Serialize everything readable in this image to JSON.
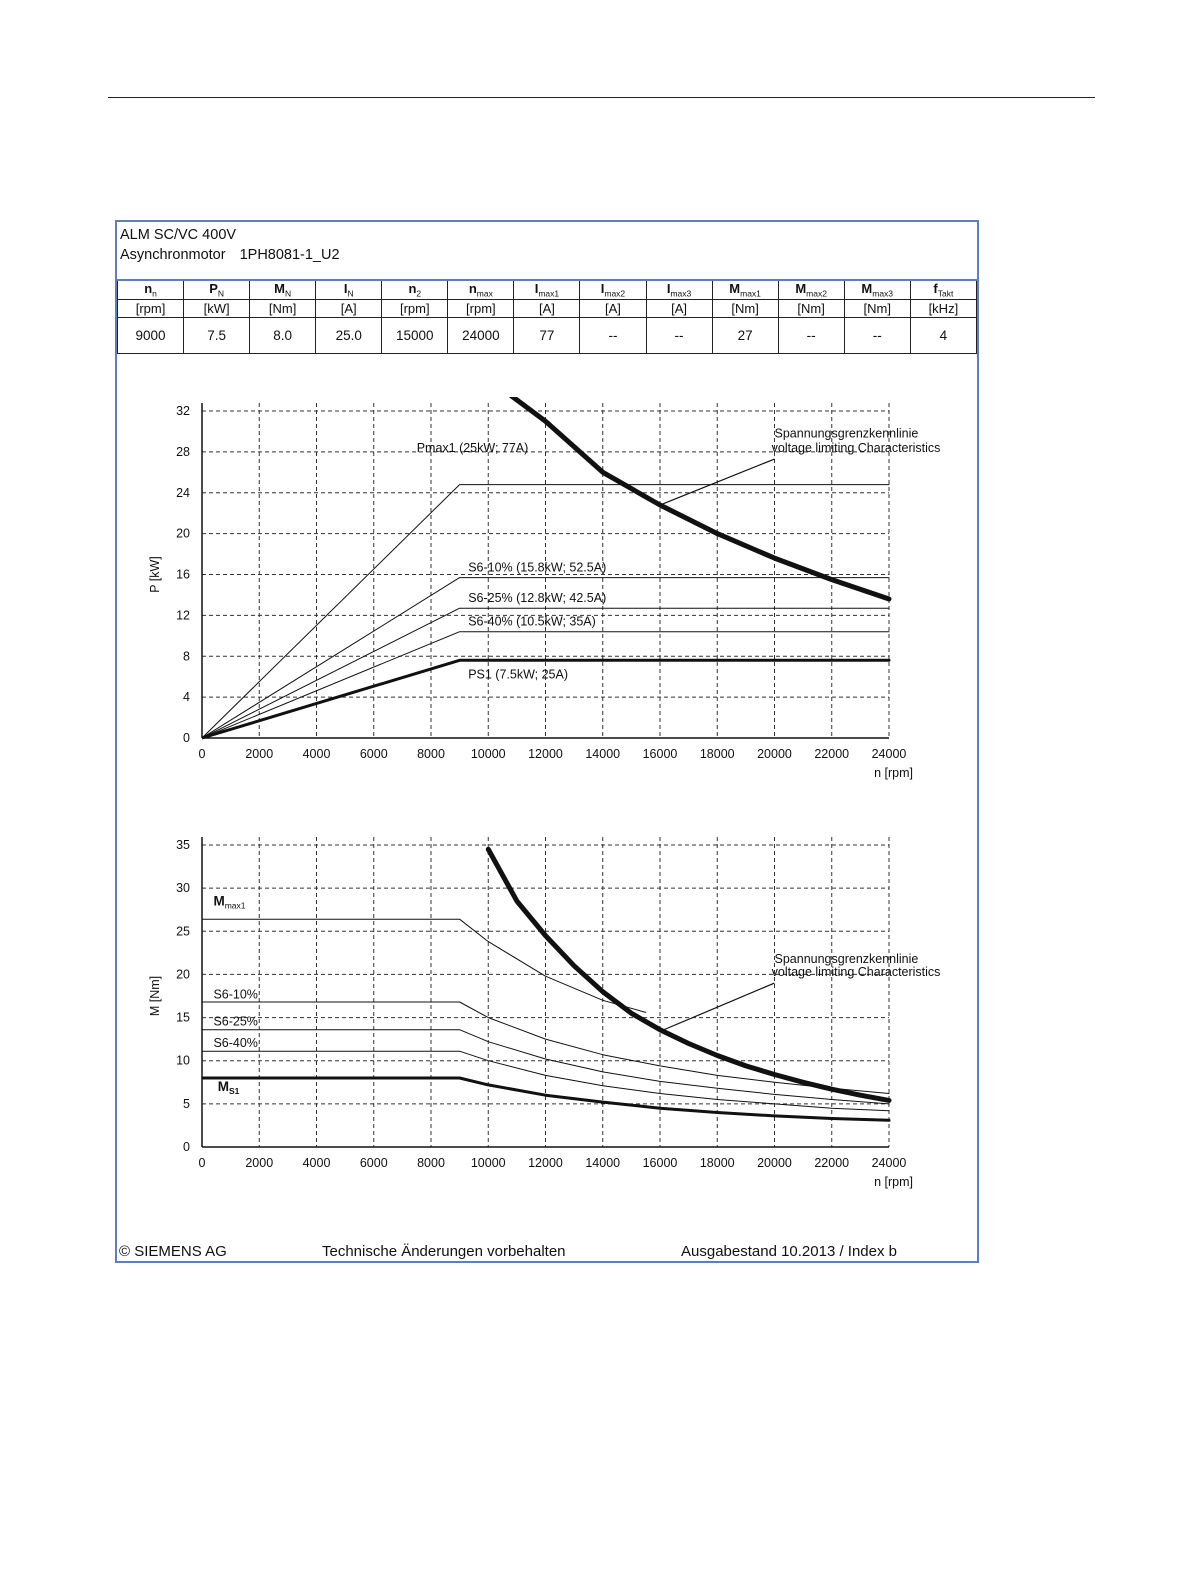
{
  "header": {
    "line1": "ALM SC/VC 400V",
    "line2_label": "Asynchronmotor",
    "line2_model": "1PH8081-1_U2"
  },
  "table": {
    "columns": [
      {
        "sym": "n",
        "sub": "n",
        "unit": "[rpm]",
        "value": "9000"
      },
      {
        "sym": "P",
        "sub": "N",
        "unit": "[kW]",
        "value": "7.5"
      },
      {
        "sym": "M",
        "sub": "N",
        "unit": "[Nm]",
        "value": "8.0"
      },
      {
        "sym": "I",
        "sub": "N",
        "unit": "[A]",
        "value": "25.0"
      },
      {
        "sym": "n",
        "sub": "2",
        "unit": "[rpm]",
        "value": "15000"
      },
      {
        "sym": "n",
        "sub": "max",
        "unit": "[rpm]",
        "value": "24000"
      },
      {
        "sym": "I",
        "sub": "max1",
        "unit": "[A]",
        "value": "77"
      },
      {
        "sym": "I",
        "sub": "max2",
        "unit": "[A]",
        "value": "--"
      },
      {
        "sym": "I",
        "sub": "max3",
        "unit": "[A]",
        "value": "--"
      },
      {
        "sym": "M",
        "sub": "max1",
        "unit": "[Nm]",
        "value": "27"
      },
      {
        "sym": "M",
        "sub": "max2",
        "unit": "[Nm]",
        "value": "--"
      },
      {
        "sym": "M",
        "sub": "max3",
        "unit": "[Nm]",
        "value": "--"
      },
      {
        "sym": "f",
        "sub": "Takt",
        "unit": "[kHz]",
        "value": "4"
      }
    ]
  },
  "chart_data": [
    {
      "type": "line",
      "title": "",
      "xlabel": "n [rpm]",
      "ylabel": "P [kW]",
      "xlim": [
        0,
        24000
      ],
      "ylim": [
        0,
        32
      ],
      "xticks": [
        0,
        2000,
        4000,
        6000,
        8000,
        10000,
        12000,
        14000,
        16000,
        18000,
        20000,
        22000,
        24000
      ],
      "yticks": [
        0,
        4,
        8,
        12,
        16,
        20,
        24,
        28,
        32
      ],
      "grid": true,
      "series": [
        {
          "name": "Pmax1 (25kW; 77A)",
          "weight": "thin",
          "x": [
            0,
            9000,
            24000
          ],
          "y": [
            0,
            24.8,
            24.8
          ]
        },
        {
          "name": "S6-10% (15.8kW; 52.5A)",
          "weight": "thin",
          "x": [
            0,
            9000,
            24000
          ],
          "y": [
            0,
            15.7,
            15.7
          ]
        },
        {
          "name": "S6-25% (12.8kW; 42.5A)",
          "weight": "thin",
          "x": [
            0,
            9000,
            24000
          ],
          "y": [
            0,
            12.7,
            12.7
          ]
        },
        {
          "name": "S6-40% (10.5kW; 35A)",
          "weight": "thin",
          "x": [
            0,
            9000,
            24000
          ],
          "y": [
            0,
            10.4,
            10.4
          ]
        },
        {
          "name": "PS1 (7.5kW; 25A)",
          "weight": "thick",
          "x": [
            0,
            9000,
            24000
          ],
          "y": [
            0,
            7.6,
            7.6
          ]
        },
        {
          "name": "Spannungsgrenzkennlinie",
          "weight": "boundary",
          "x": [
            10800,
            12000,
            14000,
            16000,
            18000,
            20000,
            22000,
            24000
          ],
          "y": [
            33.5,
            31.0,
            26.0,
            22.8,
            20.0,
            17.6,
            15.5,
            13.6
          ]
        }
      ],
      "annotations": [
        {
          "text": "Pmax1 (25kW; 77A)",
          "x": 7500,
          "y": 28
        },
        {
          "text": "S6-10% (15.8kW; 52.5A)",
          "x": 9300,
          "y": 16.3
        },
        {
          "text": "S6-25% (12.8kW; 42.5A)",
          "x": 9300,
          "y": 13.3
        },
        {
          "text": "S6-40% (10.5kW; 35A)",
          "x": 9300,
          "y": 11.0
        },
        {
          "text": "PS1 (7.5kW; 25A)",
          "x": 9300,
          "y": 5.8
        },
        {
          "text": "Spannungsgrenzkennlinie",
          "x": 20000,
          "y": 29.4
        },
        {
          "text": "voltage limiting  Characteristics",
          "x": 19900,
          "y": 28.0
        }
      ]
    },
    {
      "type": "line",
      "title": "",
      "xlabel": "n [rpm]",
      "ylabel": "M [Nm]",
      "xlim": [
        0,
        24000
      ],
      "ylim": [
        0,
        35
      ],
      "xticks": [
        0,
        2000,
        4000,
        6000,
        8000,
        10000,
        12000,
        14000,
        16000,
        18000,
        20000,
        22000,
        24000
      ],
      "yticks": [
        0,
        5,
        10,
        15,
        20,
        25,
        30,
        35
      ],
      "grid": true,
      "series": [
        {
          "name": "Mmax1",
          "weight": "thin",
          "x": [
            0,
            9000,
            10000,
            12000,
            14000,
            15500
          ],
          "y": [
            26.4,
            26.4,
            23.8,
            19.8,
            17.0,
            15.6
          ]
        },
        {
          "name": "S6-10%",
          "weight": "thin",
          "x": [
            0,
            9000,
            10000,
            12000,
            14000,
            16000,
            18000,
            20000,
            22000,
            24000
          ],
          "y": [
            16.8,
            16.8,
            15.0,
            12.5,
            10.7,
            9.4,
            8.3,
            7.5,
            6.8,
            6.2
          ]
        },
        {
          "name": "S6-25%",
          "weight": "thin",
          "x": [
            0,
            9000,
            10000,
            12000,
            14000,
            16000,
            18000,
            20000,
            22000,
            24000
          ],
          "y": [
            13.6,
            13.6,
            12.2,
            10.2,
            8.7,
            7.6,
            6.8,
            6.1,
            5.5,
            5.0
          ]
        },
        {
          "name": "S6-40%",
          "weight": "thin",
          "x": [
            0,
            9000,
            10000,
            12000,
            14000,
            16000,
            18000,
            20000,
            22000,
            24000
          ],
          "y": [
            11.1,
            11.1,
            10.0,
            8.3,
            7.1,
            6.2,
            5.5,
            5.0,
            4.5,
            4.2
          ]
        },
        {
          "name": "MS1",
          "weight": "thick",
          "x": [
            0,
            9000,
            10000,
            12000,
            14000,
            16000,
            18000,
            20000,
            22000,
            24000
          ],
          "y": [
            8.0,
            8.0,
            7.2,
            6.0,
            5.2,
            4.5,
            4.0,
            3.6,
            3.3,
            3.1
          ]
        },
        {
          "name": "Spannungsgrenzkennlinie",
          "weight": "boundary",
          "x": [
            10000,
            11000,
            12000,
            13000,
            14000,
            15000,
            16000,
            17000,
            18000,
            19000,
            20000,
            21000,
            22000,
            23000,
            24000
          ],
          "y": [
            34.5,
            28.5,
            24.5,
            21.0,
            18.0,
            15.5,
            13.6,
            12.0,
            10.6,
            9.4,
            8.4,
            7.5,
            6.7,
            6.0,
            5.4
          ]
        }
      ],
      "annotations": [
        {
          "text": "Mmax1",
          "x": 400,
          "y": 28.0
        },
        {
          "text": "S6-10%",
          "x": 400,
          "y": 17.2
        },
        {
          "text": "S6-25%",
          "x": 400,
          "y": 14.1
        },
        {
          "text": "S6-40%",
          "x": 400,
          "y": 11.6
        },
        {
          "text": "MS1",
          "x": 550,
          "y": 6.5
        },
        {
          "text": "Spannungsgrenzkennlinie",
          "x": 20000,
          "y": 21.3
        },
        {
          "text": "voltage limiting  Characteristics",
          "x": 19900,
          "y": 19.8
        }
      ]
    }
  ],
  "footer": {
    "copyright": "© SIEMENS AG",
    "disclaimer": "Technische Änderungen vorbehalten",
    "edition": "Ausgabestand 10.2013 / Index b"
  }
}
